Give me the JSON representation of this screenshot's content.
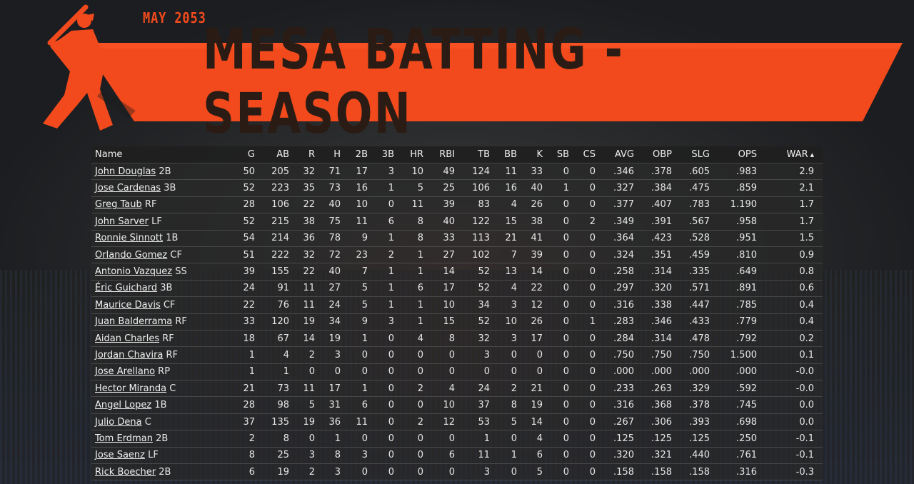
{
  "header": {
    "date": "MAY 2053",
    "title": "MESA BATTING - SEASON",
    "accent_color": "#f24a1d",
    "logo_icon": "batter-silhouette-icon"
  },
  "table": {
    "columns": [
      "Name",
      "G",
      "AB",
      "R",
      "H",
      "2B",
      "3B",
      "HR",
      "RBI",
      "TB",
      "BB",
      "K",
      "SB",
      "CS",
      "AVG",
      "OBP",
      "SLG",
      "OPS",
      "WAR"
    ],
    "sorted_by": "WAR",
    "sort_indicator": "▲",
    "rows": [
      {
        "name": "John Douglas",
        "pos": "2B",
        "stats": [
          "50",
          "205",
          "32",
          "71",
          "17",
          "3",
          "10",
          "49",
          "124",
          "11",
          "33",
          "0",
          "0",
          ".346",
          ".378",
          ".605",
          ".983",
          "2.9"
        ]
      },
      {
        "name": "Jose Cardenas",
        "pos": "3B",
        "stats": [
          "52",
          "223",
          "35",
          "73",
          "16",
          "1",
          "5",
          "25",
          "106",
          "16",
          "40",
          "1",
          "0",
          ".327",
          ".384",
          ".475",
          ".859",
          "2.1"
        ]
      },
      {
        "name": "Greg Taub",
        "pos": "RF",
        "stats": [
          "28",
          "106",
          "22",
          "40",
          "10",
          "0",
          "11",
          "39",
          "83",
          "4",
          "26",
          "0",
          "0",
          ".377",
          ".407",
          ".783",
          "1.190",
          "1.7"
        ]
      },
      {
        "name": "John Sarver",
        "pos": "LF",
        "stats": [
          "52",
          "215",
          "38",
          "75",
          "11",
          "6",
          "8",
          "40",
          "122",
          "15",
          "38",
          "0",
          "2",
          ".349",
          ".391",
          ".567",
          ".958",
          "1.7"
        ]
      },
      {
        "name": "Ronnie Sinnott",
        "pos": "1B",
        "stats": [
          "54",
          "214",
          "36",
          "78",
          "9",
          "1",
          "8",
          "33",
          "113",
          "21",
          "41",
          "0",
          "0",
          ".364",
          ".423",
          ".528",
          ".951",
          "1.5"
        ]
      },
      {
        "name": "Orlando Gomez",
        "pos": "CF",
        "stats": [
          "51",
          "222",
          "32",
          "72",
          "23",
          "2",
          "1",
          "27",
          "102",
          "7",
          "39",
          "0",
          "0",
          ".324",
          ".351",
          ".459",
          ".810",
          "0.9"
        ]
      },
      {
        "name": "Antonio Vazquez",
        "pos": "SS",
        "stats": [
          "39",
          "155",
          "22",
          "40",
          "7",
          "1",
          "1",
          "14",
          "52",
          "13",
          "14",
          "0",
          "0",
          ".258",
          ".314",
          ".335",
          ".649",
          "0.8"
        ]
      },
      {
        "name": "Éric Guichard",
        "pos": "3B",
        "stats": [
          "24",
          "91",
          "11",
          "27",
          "5",
          "1",
          "6",
          "17",
          "52",
          "4",
          "22",
          "0",
          "0",
          ".297",
          ".320",
          ".571",
          ".891",
          "0.6"
        ]
      },
      {
        "name": "Maurice Davis",
        "pos": "CF",
        "stats": [
          "22",
          "76",
          "11",
          "24",
          "5",
          "1",
          "1",
          "10",
          "34",
          "3",
          "12",
          "0",
          "0",
          ".316",
          ".338",
          ".447",
          ".785",
          "0.4"
        ]
      },
      {
        "name": "Juan Balderrama",
        "pos": "RF",
        "stats": [
          "33",
          "120",
          "19",
          "34",
          "9",
          "3",
          "1",
          "15",
          "52",
          "10",
          "26",
          "0",
          "1",
          ".283",
          ".346",
          ".433",
          ".779",
          "0.4"
        ]
      },
      {
        "name": "Aidan Charles",
        "pos": "RF",
        "stats": [
          "18",
          "67",
          "14",
          "19",
          "1",
          "0",
          "4",
          "8",
          "32",
          "3",
          "17",
          "0",
          "0",
          ".284",
          ".314",
          ".478",
          ".792",
          "0.2"
        ]
      },
      {
        "name": "Jordan Chavira",
        "pos": "RF",
        "stats": [
          "1",
          "4",
          "2",
          "3",
          "0",
          "0",
          "0",
          "0",
          "3",
          "0",
          "0",
          "0",
          "0",
          ".750",
          ".750",
          ".750",
          "1.500",
          "0.1"
        ]
      },
      {
        "name": "Jose Arellano",
        "pos": "RP",
        "stats": [
          "1",
          "1",
          "0",
          "0",
          "0",
          "0",
          "0",
          "0",
          "0",
          "0",
          "0",
          "0",
          "0",
          ".000",
          ".000",
          ".000",
          ".000",
          "-0.0"
        ]
      },
      {
        "name": "Hector Miranda",
        "pos": "C",
        "stats": [
          "21",
          "73",
          "11",
          "17",
          "1",
          "0",
          "2",
          "4",
          "24",
          "2",
          "21",
          "0",
          "0",
          ".233",
          ".263",
          ".329",
          ".592",
          "-0.0"
        ]
      },
      {
        "name": "Angel Lopez",
        "pos": "1B",
        "stats": [
          "28",
          "98",
          "5",
          "31",
          "6",
          "0",
          "0",
          "10",
          "37",
          "8",
          "19",
          "0",
          "0",
          ".316",
          ".368",
          ".378",
          ".745",
          "0.0"
        ]
      },
      {
        "name": "Julio Dena",
        "pos": "C",
        "stats": [
          "37",
          "135",
          "19",
          "36",
          "11",
          "0",
          "2",
          "12",
          "53",
          "5",
          "14",
          "0",
          "0",
          ".267",
          ".306",
          ".393",
          ".698",
          "0.0"
        ]
      },
      {
        "name": "Tom Erdman",
        "pos": "2B",
        "stats": [
          "2",
          "8",
          "0",
          "1",
          "0",
          "0",
          "0",
          "0",
          "1",
          "0",
          "4",
          "0",
          "0",
          ".125",
          ".125",
          ".125",
          ".250",
          "-0.1"
        ]
      },
      {
        "name": "Jose Saenz",
        "pos": "LF",
        "stats": [
          "8",
          "25",
          "3",
          "8",
          "3",
          "0",
          "0",
          "6",
          "11",
          "1",
          "6",
          "0",
          "0",
          ".320",
          ".321",
          ".440",
          ".761",
          "-0.1"
        ]
      },
      {
        "name": "Rick Boecher",
        "pos": "2B",
        "stats": [
          "6",
          "19",
          "2",
          "3",
          "0",
          "0",
          "0",
          "0",
          "3",
          "0",
          "5",
          "0",
          "0",
          ".158",
          ".158",
          ".158",
          ".316",
          "-0.3"
        ]
      }
    ]
  }
}
